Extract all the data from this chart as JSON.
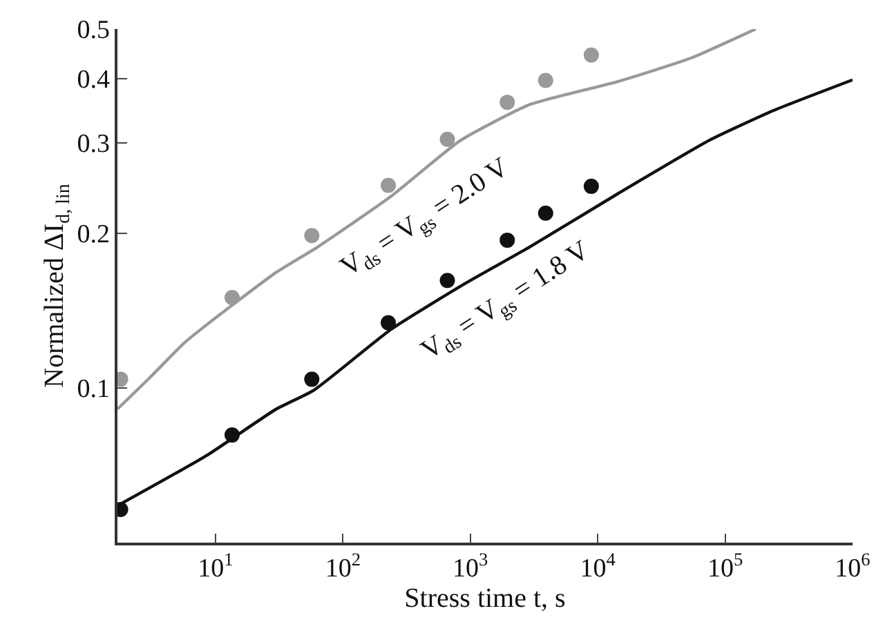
{
  "chart_data": {
    "type": "scatter",
    "xlabel": "Stress time t, s",
    "ylabel": "Normalized ΔI$_{d, lin}$",
    "log": "xy",
    "xlim": [
      1.7,
      1000000
    ],
    "xticks": [
      {
        "value": 10,
        "label": "10$^{1}$"
      },
      {
        "value": 100,
        "label": "10$^{2}$"
      },
      {
        "value": 1000,
        "label": "10$^{3}$"
      },
      {
        "value": 10000,
        "label": "10$^{4}$"
      },
      {
        "value": 100000,
        "label": "10$^{5}$"
      },
      {
        "value": 1000000,
        "label": "10$^{6}$"
      }
    ],
    "ylim": [
      0.05,
      0.5
    ],
    "yticks": [
      0.1,
      0.2,
      0.3,
      0.4,
      0.5
    ],
    "series": [
      {
        "marker": "circle",
        "color": "#999999",
        "x": [
          1.8,
          13.5,
          57,
          227,
          660,
          1950,
          3900,
          8900
        ],
        "values": [
          0.104,
          0.15,
          0.198,
          0.248,
          0.305,
          0.36,
          0.397,
          0.445
        ]
      },
      {
        "type": "line",
        "color": "#999999",
        "x": [
          1.7,
          3.2,
          5.6,
          8.6,
          30,
          63,
          238,
          830,
          2900,
          14400,
          54000,
          174000
        ],
        "values": [
          0.091,
          0.106,
          0.122,
          0.133,
          0.168,
          0.188,
          0.236,
          0.303,
          0.356,
          0.395,
          0.439,
          0.5
        ]
      },
      {
        "marker": "circle",
        "color": "#111111",
        "x": [
          1.8,
          13.5,
          57,
          227,
          660,
          1950,
          3900,
          8900
        ],
        "values": [
          0.058,
          0.081,
          0.104,
          0.134,
          0.162,
          0.194,
          0.219,
          0.247
        ]
      },
      {
        "type": "line",
        "color": "#111111",
        "x": [
          1.7,
          8.6,
          30,
          59,
          238,
          920,
          2900,
          14400,
          74000,
          240000,
          1000000
        ],
        "values": [
          0.059,
          0.074,
          0.091,
          0.099,
          0.13,
          0.16,
          0.188,
          0.239,
          0.303,
          0.347,
          0.398
        ]
      }
    ],
    "annotations": [
      "V$_{ds}$ = V$_{gs}$ = 2.0 V",
      "V$_{ds}$ = V$_{gs}$ = 1.8 V"
    ]
  }
}
